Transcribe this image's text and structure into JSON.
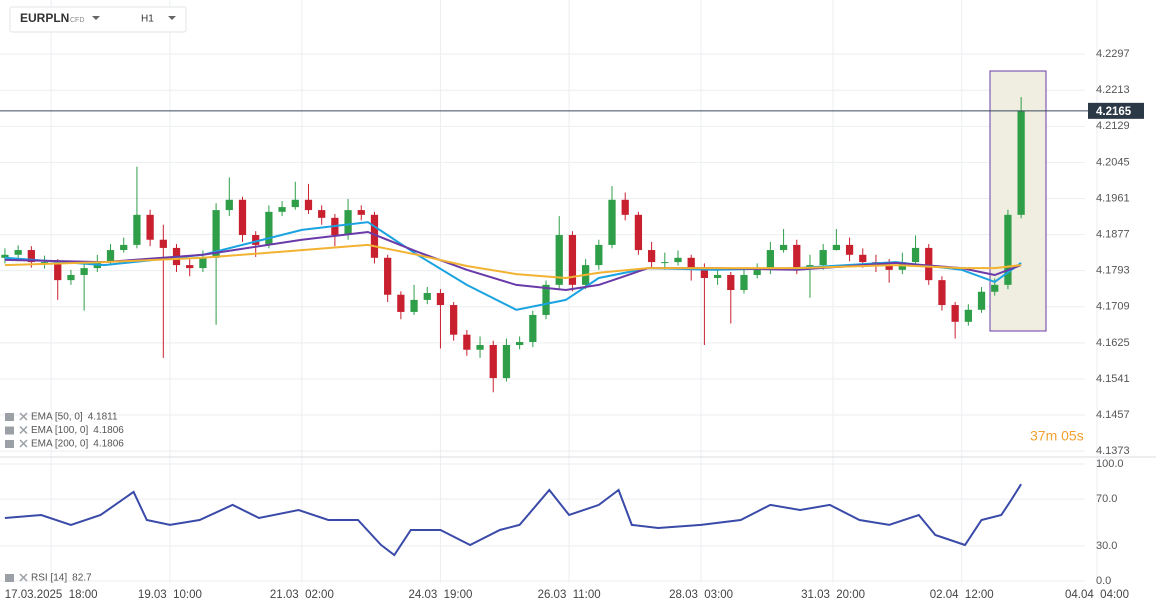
{
  "toolbar": {
    "symbol": "EURPLN",
    "kind": "CFD",
    "interval": "H1"
  },
  "chart_data": [
    {
      "type": "candlestick",
      "x": [
        0,
        4,
        8,
        12,
        16,
        20,
        24,
        28,
        32,
        36,
        40,
        44,
        48,
        52,
        56,
        60,
        64,
        68,
        72,
        76,
        80,
        84,
        88,
        92,
        96,
        100,
        104,
        108,
        112,
        116,
        120,
        124,
        128,
        132,
        136,
        140,
        144,
        148,
        152,
        156,
        160,
        164,
        168,
        172,
        176,
        180,
        184,
        188,
        192,
        196,
        200,
        204,
        208,
        212,
        216,
        220,
        224,
        228,
        232,
        236,
        240,
        244,
        248,
        252,
        256,
        260,
        264,
        268,
        272,
        276,
        280,
        284,
        288,
        292,
        296,
        300,
        304,
        308
      ],
      "open": [
        4.1823,
        4.183,
        4.1841,
        4.1813,
        4.1813,
        4.1771,
        4.1783,
        4.1799,
        4.1813,
        4.1841,
        4.1853,
        4.1923,
        4.1865,
        4.1846,
        4.1806,
        4.1799,
        4.1823,
        4.1934,
        4.1958,
        4.1876,
        4.1853,
        4.193,
        4.1941,
        4.1958,
        4.1934,
        4.1916,
        4.1876,
        4.1934,
        4.1923,
        4.1823,
        4.1737,
        4.1697,
        4.1725,
        4.1741,
        4.1713,
        4.1644,
        4.1609,
        4.162,
        4.1543,
        4.162,
        4.1627,
        4.169,
        4.176,
        4.1876,
        4.176,
        4.1806,
        4.1853,
        4.1958,
        4.1923,
        4.1841,
        4.1813,
        4.1813,
        4.1823,
        4.1795,
        4.1776,
        4.1783,
        4.1748,
        4.1783,
        4.1795,
        4.1841,
        4.1853,
        4.1799,
        4.1806,
        4.1841,
        4.1853,
        4.183,
        4.1813,
        4.1806,
        4.1795,
        4.1813,
        4.1846,
        4.1771,
        4.1713,
        4.1674,
        4.1702,
        4.1744,
        4.176,
        4.1923
      ],
      "high": [
        4.1845,
        4.1852,
        4.185,
        4.1828,
        4.182,
        4.1795,
        4.181,
        4.183,
        4.1855,
        4.187,
        4.2035,
        4.1935,
        4.19,
        4.1855,
        4.182,
        4.184,
        4.195,
        4.201,
        4.1965,
        4.1885,
        4.1945,
        4.1955,
        4.2,
        4.1995,
        4.1945,
        4.1925,
        4.196,
        4.1945,
        4.193,
        4.183,
        4.1745,
        4.176,
        4.1755,
        4.175,
        4.172,
        4.1655,
        4.164,
        4.163,
        4.1635,
        4.164,
        4.17,
        4.177,
        4.192,
        4.1885,
        4.182,
        4.1865,
        4.199,
        4.1975,
        4.193,
        4.186,
        4.1835,
        4.184,
        4.183,
        4.181,
        4.18,
        4.179,
        4.1795,
        4.181,
        4.186,
        4.189,
        4.1865,
        4.183,
        4.1855,
        4.189,
        4.187,
        4.1845,
        4.183,
        4.182,
        4.1835,
        4.1875,
        4.1855,
        4.178,
        4.172,
        4.1715,
        4.1755,
        4.1775,
        4.1935,
        4.2197
      ],
      "low": [
        4.181,
        4.1818,
        4.18,
        4.1798,
        4.1725,
        4.176,
        4.17,
        4.179,
        4.1805,
        4.1835,
        4.1845,
        4.185,
        4.159,
        4.179,
        4.178,
        4.179,
        4.1667,
        4.192,
        4.186,
        4.1825,
        4.1845,
        4.192,
        4.1935,
        4.1925,
        4.19,
        4.185,
        4.1865,
        4.191,
        4.181,
        4.172,
        4.168,
        4.169,
        4.1715,
        4.1612,
        4.163,
        4.1595,
        4.159,
        4.151,
        4.1535,
        4.161,
        4.1615,
        4.168,
        4.175,
        4.1745,
        4.175,
        4.1795,
        4.1845,
        4.191,
        4.183,
        4.18,
        4.1795,
        4.1805,
        4.177,
        4.162,
        4.176,
        4.167,
        4.174,
        4.1775,
        4.1785,
        4.1835,
        4.1785,
        4.173,
        4.1795,
        4.184,
        4.1815,
        4.18,
        4.179,
        4.1765,
        4.1785,
        4.1805,
        4.176,
        4.17,
        4.1635,
        4.1665,
        4.1695,
        4.1735,
        4.175,
        4.1915
      ],
      "close": [
        4.183,
        4.1841,
        4.1813,
        4.1813,
        4.1771,
        4.1783,
        4.1799,
        4.1813,
        4.1841,
        4.1853,
        4.1923,
        4.1865,
        4.1846,
        4.1806,
        4.1799,
        4.1823,
        4.1934,
        4.1958,
        4.1876,
        4.1853,
        4.193,
        4.1941,
        4.1958,
        4.1934,
        4.1916,
        4.1876,
        4.1934,
        4.1923,
        4.1823,
        4.1737,
        4.1697,
        4.1725,
        4.1741,
        4.1713,
        4.1644,
        4.1609,
        4.162,
        4.1543,
        4.162,
        4.1627,
        4.169,
        4.176,
        4.1876,
        4.176,
        4.1806,
        4.1853,
        4.1958,
        4.1923,
        4.1841,
        4.1813,
        4.1813,
        4.1823,
        4.1795,
        4.1776,
        4.1783,
        4.1748,
        4.1783,
        4.1795,
        4.1841,
        4.1853,
        4.1799,
        4.1806,
        4.1841,
        4.1853,
        4.183,
        4.1813,
        4.1806,
        4.1795,
        4.1813,
        4.1846,
        4.1771,
        4.1713,
        4.1674,
        4.1702,
        4.1744,
        4.176,
        4.1923,
        4.2165
      ],
      "up_color": "#2e9e48",
      "down_color": "#c8202f",
      "series": [
        {
          "name": "EMA [50, 0]",
          "color": "#1aa3e0",
          "x": [
            0,
            30,
            60,
            90,
            110,
            125,
            140,
            155,
            170,
            180,
            195,
            215,
            240,
            270,
            290,
            300,
            308
          ],
          "values": [
            4.1823,
            4.1806,
            4.183,
            4.1888,
            4.1906,
            4.183,
            4.176,
            4.1702,
            4.1725,
            4.1776,
            4.1799,
            4.1795,
            4.1799,
            4.1813,
            4.1795,
            4.1767,
            4.1811
          ]
        },
        {
          "name": "EMA [100, 0]",
          "color": "#6a3aa8",
          "x": [
            0,
            30,
            60,
            90,
            110,
            125,
            140,
            155,
            170,
            180,
            195,
            215,
            240,
            270,
            290,
            300,
            308
          ],
          "values": [
            4.1818,
            4.1813,
            4.183,
            4.1865,
            4.1883,
            4.1837,
            4.1795,
            4.176,
            4.1748,
            4.176,
            4.1799,
            4.1799,
            4.1795,
            4.1811,
            4.1799,
            4.1783,
            4.1806
          ]
        },
        {
          "name": "EMA [200, 0]",
          "color": "#f2b232",
          "x": [
            0,
            30,
            60,
            90,
            110,
            125,
            140,
            155,
            170,
            180,
            195,
            215,
            240,
            270,
            290,
            300,
            308
          ],
          "values": [
            4.1806,
            4.1813,
            4.1823,
            4.1841,
            4.1853,
            4.183,
            4.1804,
            4.1785,
            4.1776,
            4.1788,
            4.1799,
            4.1799,
            4.1799,
            4.1806,
            4.1799,
            4.1799,
            4.1806
          ]
        }
      ],
      "xlim": [
        -1.5,
        341
      ],
      "ylim": [
        4.1364,
        4.2423
      ],
      "yticks": [
        4.1373,
        4.1457,
        4.1541,
        4.1625,
        4.1709,
        4.1793,
        4.1877,
        4.1961,
        4.2045,
        4.2129,
        4.2213,
        4.2297
      ],
      "xticks": [
        {
          "value": 14,
          "label": "17.03.2025  18:00"
        },
        {
          "value": 50,
          "label": "19.03  10:00"
        },
        {
          "value": 90,
          "label": "21.03  02:00"
        },
        {
          "value": 132,
          "label": "24.03  19:00"
        },
        {
          "value": 171,
          "label": "26.03  11:00"
        },
        {
          "value": 211,
          "label": "28.03  03:00"
        },
        {
          "value": 251,
          "label": "31.03  20:00"
        },
        {
          "value": 290,
          "label": "02.04  12:00"
        },
        {
          "value": 331,
          "label": "04.04  04:00"
        }
      ],
      "grid": true,
      "countdown": "37m 05s"
    },
    {
      "type": "line",
      "series": [
        {
          "name": "RSI [14]",
          "color": "#3a4aa8",
          "x": [
            0,
            11,
            20,
            29,
            39,
            43,
            50,
            59,
            69,
            77,
            89,
            98,
            107,
            114,
            118,
            123,
            132,
            141,
            150,
            156,
            165,
            171,
            180,
            186,
            190,
            198,
            211,
            223,
            232,
            241,
            250,
            259,
            268,
            277,
            282,
            291,
            296,
            302,
            305,
            308
          ],
          "values": [
            53.8,
            56.4,
            47.9,
            56.4,
            76.1,
            52.1,
            47.9,
            52.1,
            65.0,
            53.8,
            60.7,
            52.1,
            52.1,
            30.8,
            22.2,
            43.6,
            43.6,
            30.8,
            43.6,
            47.9,
            77.8,
            56.4,
            65.0,
            77.8,
            47.9,
            45.3,
            47.9,
            52.1,
            65.0,
            60.7,
            65.0,
            52.1,
            47.9,
            56.4,
            39.3,
            30.8,
            52.1,
            56.4,
            69.2,
            82.7
          ]
        }
      ],
      "xlim": [
        -1.5,
        341
      ],
      "ylim": [
        -20.5,
        105.1
      ],
      "yticks": [
        {
          "value": 100,
          "label": "100.0"
        },
        {
          "value": 70,
          "label": "70.0"
        },
        {
          "value": 30,
          "label": "30.0"
        },
        {
          "value": 0,
          "label": "0.0"
        }
      ],
      "grid": true
    }
  ]
}
